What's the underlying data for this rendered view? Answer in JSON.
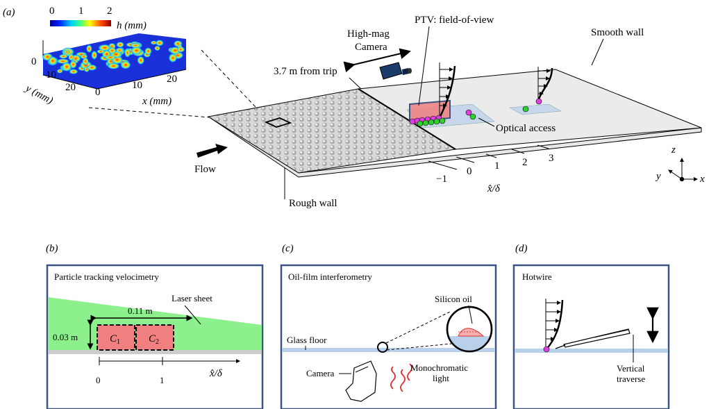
{
  "panel_a": {
    "label": "(a)",
    "colorbar": {
      "ticks": [
        "0",
        "1",
        "2"
      ],
      "label": "h (mm)"
    },
    "inset": {
      "y_ticks": [
        "0",
        "10",
        "20"
      ],
      "y_label": "y (mm)",
      "x_ticks": [
        "0",
        "10",
        "20"
      ],
      "x_label": "x (mm)"
    },
    "high_mag_camera": "High-mag\nCamera",
    "ptv_fov": "PTV: field-of-view",
    "smooth_wall": "Smooth wall",
    "distance_from_trip": "3.7 m from trip",
    "optical_access": "Optical access",
    "flow": "Flow",
    "rough_wall": "Rough wall",
    "axis_ticks": [
      "−1",
      "0",
      "1",
      "2",
      "3"
    ],
    "axis_label": "x̂/δ",
    "coord_axes": {
      "z": "z",
      "y": "y",
      "x": "x"
    }
  },
  "panel_b": {
    "label": "(b)",
    "title": "Particle tracking velocimetry",
    "laser_sheet": "Laser sheet",
    "width_dim": "0.11 m",
    "height_dim": "0.03 m",
    "c1": "C",
    "c1_sub": "1",
    "c2": "C",
    "c2_sub": "2",
    "ticks": [
      "0",
      "1"
    ],
    "axis_label": "x̂/δ"
  },
  "panel_c": {
    "label": "(c)",
    "title": "Oil-film interferometry",
    "silicon_oil": "Silicon oil",
    "glass_floor": "Glass floor",
    "camera": "Camera",
    "light": "Monochromatic\nlight"
  },
  "panel_d": {
    "label": "(d)",
    "title": "Hotwire",
    "traverse": "Vertical\ntraverse"
  },
  "colors": {
    "panel_border": "#3b5580",
    "laser": "#8cf08c",
    "ptv_box": "#f08080",
    "glass": "#b8d0ea",
    "magenta": "#e040e0",
    "green": "#30d030",
    "red_light": "#e03030"
  }
}
